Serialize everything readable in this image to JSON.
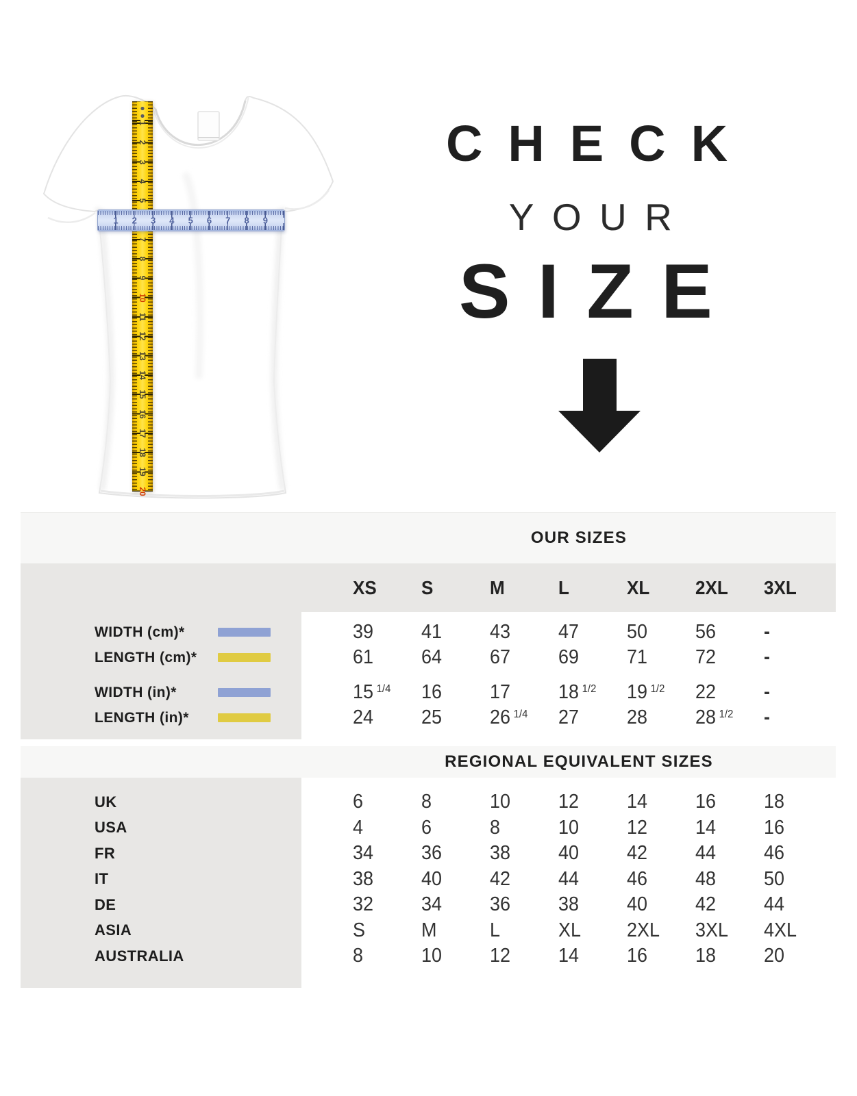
{
  "hero": {
    "title_line1": "CHECK",
    "title_line2": "YOUR",
    "title_line3": "SIZE",
    "arrow_icon": "down-arrow",
    "tshirt": {
      "description": "white short-sleeve t-shirt with vertical and horizontal measuring tapes",
      "vertical_tape": {
        "color": "#ffd60e",
        "numbers": [
          "1",
          "2",
          "3",
          "4",
          "5",
          "6",
          "7",
          "8",
          "9",
          "10",
          "11",
          "12",
          "13",
          "14",
          "15",
          "16",
          "17",
          "18",
          "19",
          "20"
        ],
        "red_numbers": [
          "10",
          "20"
        ]
      },
      "horizontal_tape": {
        "color": "#cfdcf4",
        "numbers": [
          "1",
          "2",
          "3",
          "4",
          "5",
          "6",
          "7",
          "8",
          "9"
        ]
      }
    }
  },
  "size_chart": {
    "our_sizes_label": "OUR SIZES",
    "regional_label": "REGIONAL EQUIVALENT SIZES",
    "size_columns": [
      "XS",
      "S",
      "M",
      "L",
      "XL",
      "2XL",
      "3XL"
    ],
    "swatch_colors": {
      "width": "#8fa2d4",
      "length": "#e0cb42"
    },
    "measurement_rows": [
      {
        "label": "WIDTH (cm)*",
        "swatch": "width",
        "values": [
          "39",
          "41",
          "43",
          "47",
          "50",
          "56",
          "-"
        ]
      },
      {
        "label": "LENGTH (cm)*",
        "swatch": "length",
        "values": [
          "61",
          "64",
          "67",
          "69",
          "71",
          "72",
          "-"
        ]
      },
      {
        "label": "WIDTH (in)*",
        "swatch": "width",
        "values": [
          "15 1/4",
          "16",
          "17",
          "18 1/2",
          "19 1/2",
          "22",
          "-"
        ]
      },
      {
        "label": "LENGTH (in)*",
        "swatch": "length",
        "values": [
          "24",
          "25",
          "26 1/4",
          "27",
          "28",
          "28 1/2",
          "-"
        ]
      }
    ],
    "regional_rows": [
      {
        "label": "UK",
        "values": [
          "6",
          "8",
          "10",
          "12",
          "14",
          "16",
          "18"
        ]
      },
      {
        "label": "USA",
        "values": [
          "4",
          "6",
          "8",
          "10",
          "12",
          "14",
          "16"
        ]
      },
      {
        "label": "FR",
        "values": [
          "34",
          "36",
          "38",
          "40",
          "42",
          "44",
          "46"
        ]
      },
      {
        "label": "IT",
        "values": [
          "38",
          "40",
          "42",
          "44",
          "46",
          "48",
          "50"
        ]
      },
      {
        "label": "DE",
        "values": [
          "32",
          "34",
          "36",
          "38",
          "40",
          "42",
          "44"
        ]
      },
      {
        "label": "ASIA",
        "values": [
          "S",
          "M",
          "L",
          "XL",
          "2XL",
          "3XL",
          "4XL"
        ]
      },
      {
        "label": "AUSTRALIA",
        "values": [
          "8",
          "10",
          "12",
          "14",
          "16",
          "18",
          "20"
        ]
      }
    ]
  }
}
